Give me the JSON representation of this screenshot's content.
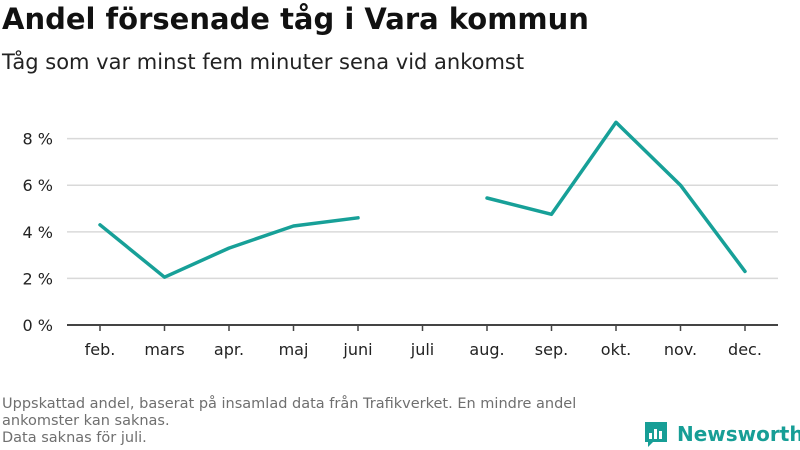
{
  "header": {
    "title": "Andel försenade tåg i Vara kommun",
    "subtitle": "Tåg som var minst fem minuter sena vid ankomst"
  },
  "chart_data": {
    "type": "line",
    "categories": [
      "feb.",
      "mars",
      "apr.",
      "maj",
      "juni",
      "juli",
      "aug.",
      "sep.",
      "okt.",
      "nov.",
      "dec."
    ],
    "series": [
      {
        "values": [
          4.3,
          2.05,
          3.3,
          4.25,
          4.6,
          null,
          5.45,
          4.75,
          8.7,
          6.0,
          2.3
        ]
      }
    ],
    "y_ticks": [
      0,
      2,
      4,
      6,
      8
    ],
    "y_tick_format": "{v} %",
    "ylim": [
      0,
      9.1
    ],
    "grid": true,
    "line_color": "#17a098",
    "grid_color": "#d9d9d9",
    "axis_color": "#444444"
  },
  "footer": {
    "notes": [
      "Uppskattad andel, baserat på insamlad data från Trafikverket. En mindre andel ankomster kan saknas.",
      "Data saknas för juli."
    ],
    "brand": {
      "name": "Newsworthy",
      "icon": "bar-chart-logo-icon",
      "color": "#179e96"
    }
  }
}
